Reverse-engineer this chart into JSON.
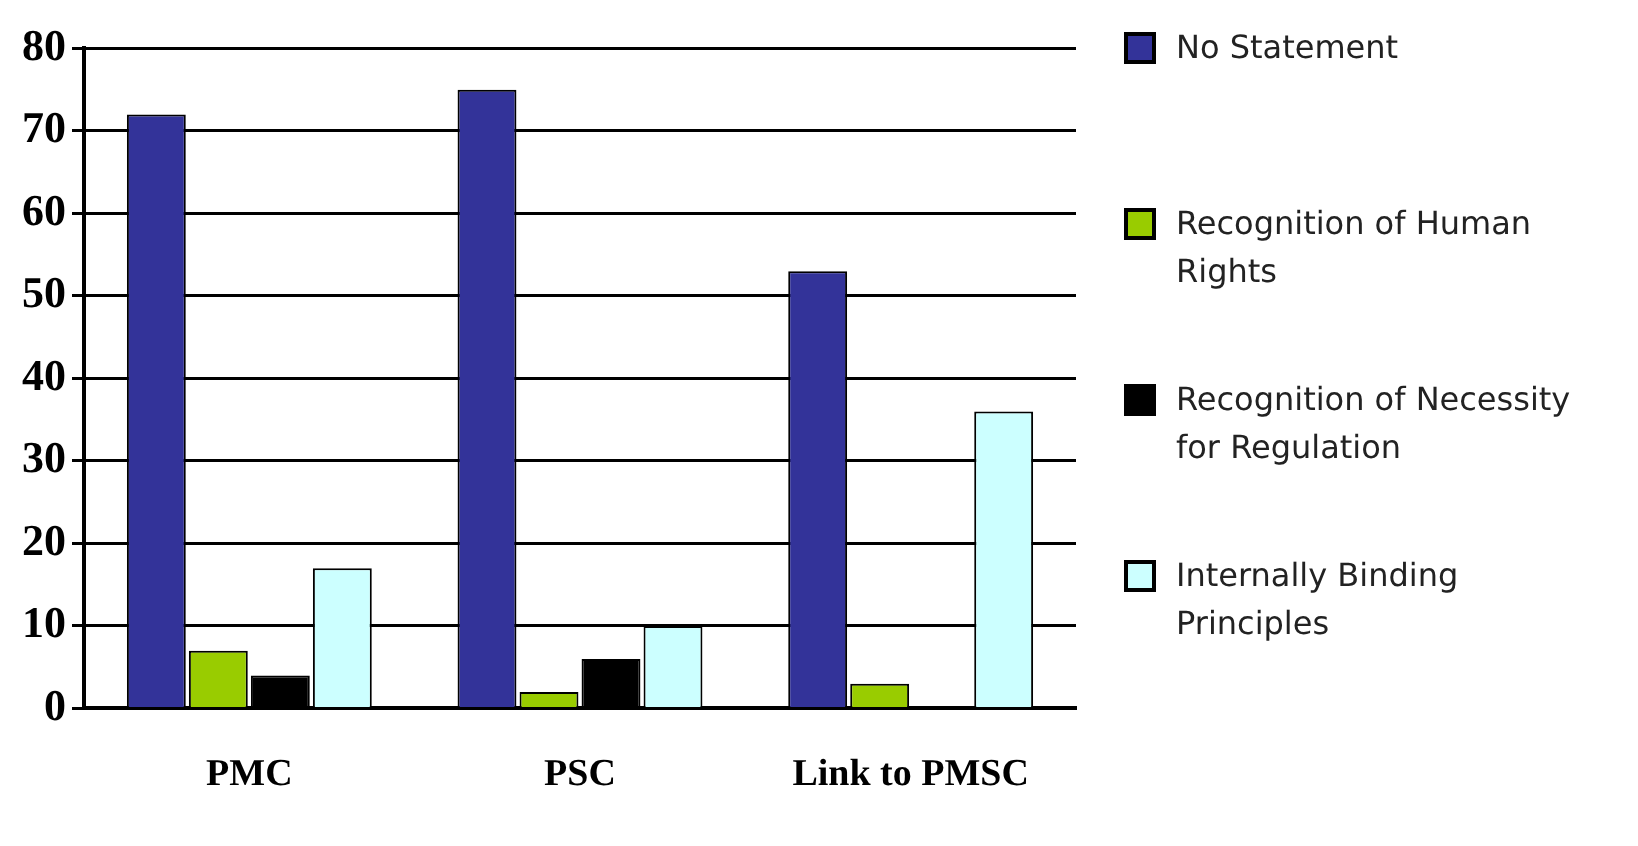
{
  "chart_data": {
    "type": "bar",
    "categories": [
      "PMC",
      "PSC",
      "Link to PMSC"
    ],
    "series": [
      {
        "name": "No Statement",
        "color": "#333399",
        "values": [
          72,
          75,
          53
        ]
      },
      {
        "name": "Recognition of Human Rights",
        "color": "#99cc00",
        "values": [
          7,
          2,
          3
        ]
      },
      {
        "name": "Recognition of Necessity for Regulation",
        "color": "#000000",
        "values": [
          4,
          6,
          0
        ]
      },
      {
        "name": "Internally Binding Principles",
        "color": "#ccffff",
        "values": [
          17,
          10,
          36
        ]
      }
    ],
    "ylim": [
      0,
      80
    ],
    "yticks": [
      0,
      10,
      20,
      30,
      40,
      50,
      60,
      70,
      80
    ],
    "grid": "y",
    "legend": "right"
  }
}
